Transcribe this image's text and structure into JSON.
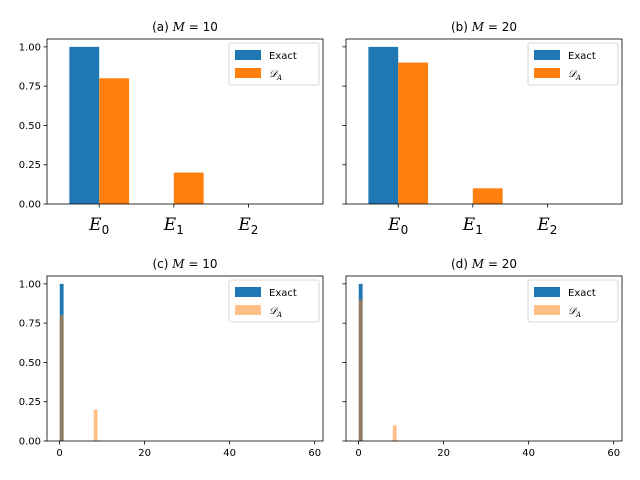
{
  "chart_data": [
    {
      "id": "a",
      "type": "bar",
      "title_prefix": "(a)",
      "title_var": "M",
      "title_value": "= 10",
      "categories": [
        {
          "base": "E",
          "sub": "0"
        },
        {
          "base": "E",
          "sub": "1"
        },
        {
          "base": "E",
          "sub": "2"
        }
      ],
      "series": [
        {
          "name": "Exact",
          "values": [
            1.0,
            0.0,
            0.0
          ],
          "color": "#1f77b4"
        },
        {
          "name": "𝒟",
          "name_sub": "A",
          "values": [
            0.8,
            0.2,
            0.0
          ],
          "color": "#ff7f0e"
        }
      ],
      "ylim": [
        0,
        1.05
      ],
      "yticks": [
        "0.00",
        "0.25",
        "0.50",
        "0.75",
        "1.00"
      ],
      "show_yticklabels": true,
      "legend": "top-right"
    },
    {
      "id": "b",
      "type": "bar",
      "title_prefix": "(b)",
      "title_var": "M",
      "title_value": "= 20",
      "categories": [
        {
          "base": "E",
          "sub": "0"
        },
        {
          "base": "E",
          "sub": "1"
        },
        {
          "base": "E",
          "sub": "2"
        }
      ],
      "series": [
        {
          "name": "Exact",
          "values": [
            1.0,
            0.0,
            0.0
          ],
          "color": "#1f77b4"
        },
        {
          "name": "𝒟",
          "name_sub": "A",
          "values": [
            0.9,
            0.1,
            0.0
          ],
          "color": "#ff7f0e"
        }
      ],
      "ylim": [
        0,
        1.05
      ],
      "yticks": [
        "0.00",
        "0.25",
        "0.50",
        "0.75",
        "1.00"
      ],
      "show_yticklabels": false,
      "legend": "top-right"
    },
    {
      "id": "c",
      "type": "histogram",
      "title_prefix": "(c)",
      "title_var": "M",
      "title_value": "= 10",
      "series": [
        {
          "name": "Exact",
          "points": [
            [
              0.5,
              1.0
            ]
          ],
          "color": "#1f77b4",
          "alpha": 1.0
        },
        {
          "name": "𝒟",
          "name_sub": "A",
          "points": [
            [
              0.5,
              0.8
            ],
            [
              8.5,
              0.2
            ]
          ],
          "color": "#ff7f0e",
          "alpha": 0.5
        }
      ],
      "bin_width": 0.9,
      "xlim": [
        -2.95,
        61.95
      ],
      "ylim": [
        0,
        1.05
      ],
      "xticks": [
        "0",
        "20",
        "40",
        "60"
      ],
      "yticks": [
        "0.00",
        "0.25",
        "0.50",
        "0.75",
        "1.00"
      ],
      "show_yticklabels": true,
      "legend": "top-right"
    },
    {
      "id": "d",
      "type": "histogram",
      "title_prefix": "(d)",
      "title_var": "M",
      "title_value": "= 20",
      "series": [
        {
          "name": "Exact",
          "points": [
            [
              0.5,
              1.0
            ]
          ],
          "color": "#1f77b4",
          "alpha": 1.0
        },
        {
          "name": "𝒟",
          "name_sub": "A",
          "points": [
            [
              0.5,
              0.9
            ],
            [
              8.5,
              0.1
            ]
          ],
          "color": "#ff7f0e",
          "alpha": 0.5
        }
      ],
      "bin_width": 0.9,
      "xlim": [
        -2.95,
        61.95
      ],
      "ylim": [
        0,
        1.05
      ],
      "xticks": [
        "0",
        "20",
        "40",
        "60"
      ],
      "yticks": [
        "0.00",
        "0.25",
        "0.50",
        "0.75",
        "1.00"
      ],
      "show_yticklabels": false,
      "legend": "top-right"
    }
  ]
}
